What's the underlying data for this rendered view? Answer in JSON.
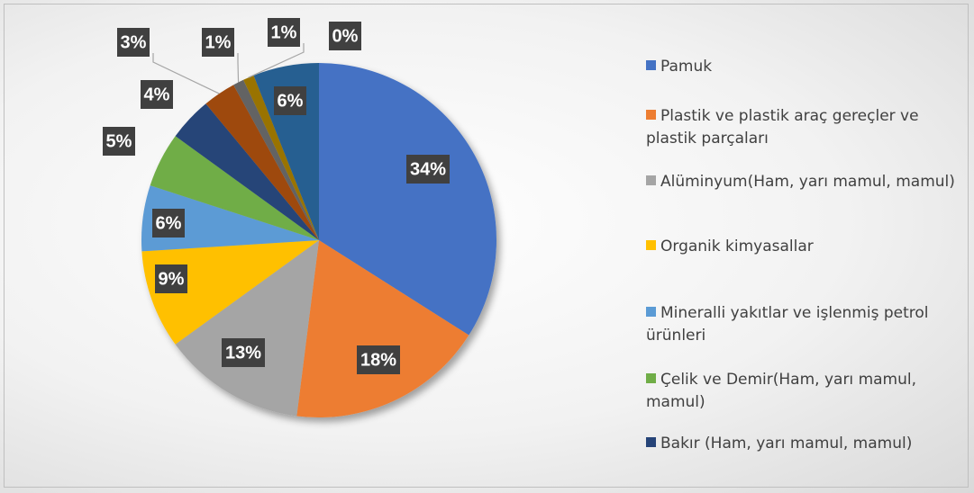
{
  "chart_data": {
    "type": "pie",
    "categories": [
      "Pamuk",
      "Plastik ve plastik araç gereçler ve plastik parçaları",
      "Alüminyum(Ham, yarı mamul, mamul)",
      "Organik kimyasallar",
      "Mineralli yakıtlar ve işlenmiş petrol ürünleri",
      "Çelik ve Demir(Ham, yarı mamul, mamul)",
      "Bakır (Ham, yarı mamul, mamul)",
      null,
      null,
      null,
      null,
      null
    ],
    "values": [
      34,
      18,
      13,
      9,
      6,
      5,
      4,
      3,
      1,
      1,
      0,
      6
    ],
    "value_labels": [
      "34%",
      "18%",
      "13%",
      "9%",
      "6%",
      "5%",
      "4%",
      "3%",
      "1%",
      "1%",
      "0%",
      "6%"
    ],
    "colors": [
      "#4472c4",
      "#ed7d31",
      "#a5a5a5",
      "#ffc000",
      "#5b9bd5",
      "#70ad47",
      "#264478",
      "#9e480e",
      "#636363",
      "#997300",
      "#43682b",
      "#255e91"
    ],
    "legend": "right"
  }
}
